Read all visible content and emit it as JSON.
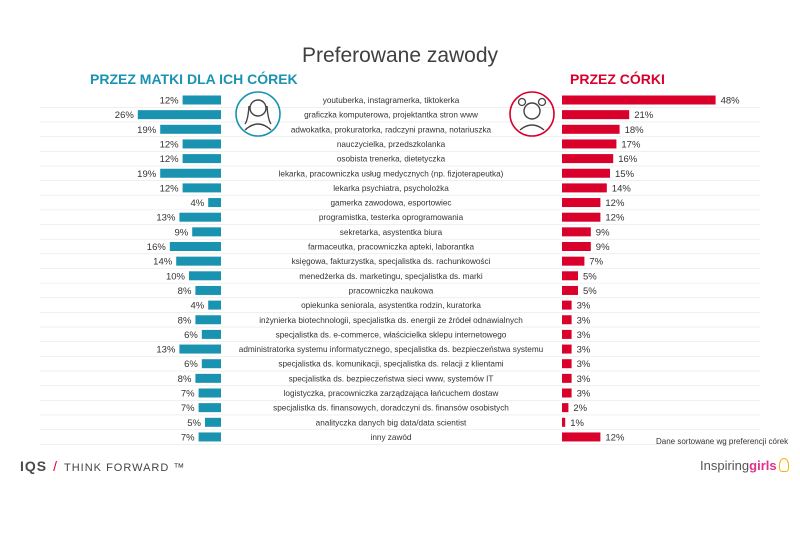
{
  "page": {
    "title": "Preferowane zawody",
    "left_header": "PRZEZ MATKI DLA ICH CÓREK",
    "right_header": "PRZEZ CÓRKI",
    "note": "Dane sortowane wg preferencji córek",
    "logo_left": {
      "ios": "IQS",
      "tag": "THINK FORWARD ™"
    },
    "logo_right": {
      "a": "Inspiring",
      "b": "girls"
    }
  },
  "colors": {
    "mothers": "#1a93b0",
    "daughters": "#d9002c",
    "text": "#333333"
  },
  "chart_data": {
    "type": "bar",
    "orientation": "horizontal",
    "title": "Preferowane zawody",
    "unit": "%",
    "categories": [
      "youtuberka, instagramerka, tiktokerka",
      "graficzka komputerowa, projektantka stron www",
      "adwokatka, prokuratorka, radczyni prawna, notariuszka",
      "nauczycielka, przedszkolanka",
      "osobista trenerka, dietetyczka",
      "lekarka, pracowniczka usług medycznych (np. fizjoterapeutka)",
      "lekarka psychiatra, psycholożka",
      "gamerka zawodowa, esportowiec",
      "programistka, testerka oprogramowania",
      "sekretarka, asystentka biura",
      "farmaceutka, pracowniczka apteki, laborantka",
      "księgowa, fakturzystka, specjalistka ds. rachunkowości",
      "menedżerka ds. marketingu, specjalistka ds. marki",
      "pracowniczka naukowa",
      "opiekunka seniorala, asystentka rodzin, kuratorka",
      "inżynierka biotechnologii, specjalistka ds. energii ze źródeł odnawialnych",
      "specjalistka ds. e-commerce, właścicielka sklepu internetowego",
      "administratorka systemu informatycznego, specjalistka ds. bezpieczeństwa systemu",
      "specjalistka ds. komunikacji, specjalistka ds. relacji z klientami",
      "specjalistka ds. bezpieczeństwa sieci www, systemów IT",
      "logistyczka, pracowniczka zarządzająca łańcuchem dostaw",
      "specjalistka ds. finansowych, doradczyni ds. finansów osobistych",
      "analityczka danych big data/data scientist",
      "inny zawód"
    ],
    "series": [
      {
        "name": "PRZEZ MATKI DLA ICH CÓREK",
        "color": "#1a93b0",
        "values": [
          12,
          26,
          19,
          12,
          12,
          19,
          12,
          4,
          13,
          9,
          16,
          14,
          10,
          8,
          4,
          8,
          6,
          13,
          6,
          8,
          7,
          7,
          5,
          7
        ],
        "labels": [
          "12%",
          "26%",
          "19%",
          "12%",
          "12%",
          "19%",
          "12%",
          "4%",
          "13%",
          "9%",
          "16%",
          "14%",
          "10%",
          "8%",
          "4%",
          "8%",
          "6%",
          "13%",
          "6%",
          "8%",
          "7%",
          "7%",
          "5%",
          "7%"
        ]
      },
      {
        "name": "PRZEZ CÓRKI",
        "color": "#d9002c",
        "values": [
          48,
          21,
          18,
          17,
          16,
          15,
          14,
          12,
          12,
          9,
          9,
          7,
          5,
          5,
          3,
          3,
          3,
          3,
          3,
          3,
          3,
          2,
          1,
          12
        ],
        "labels": [
          "48%",
          "21%",
          "18%",
          "17%",
          "16%",
          "15%",
          "14%",
          "12%",
          "12%",
          "9%",
          "9%",
          "7%",
          "5%",
          "5%",
          "3%",
          "3%",
          "3%",
          "3%",
          "3%",
          "3%",
          "3%",
          "2%",
          "1%",
          "12%"
        ]
      }
    ],
    "sorted_by": "PRZEZ CÓRKI"
  }
}
